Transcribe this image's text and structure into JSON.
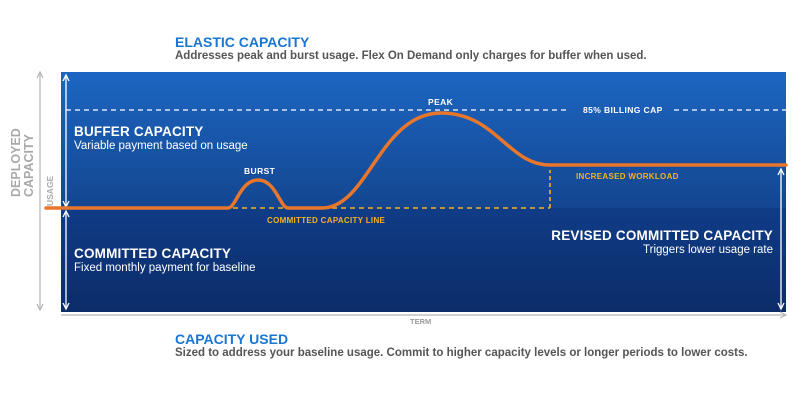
{
  "header": {
    "title": "ELASTIC CAPACITY",
    "subtitle": "Addresses peak and burst usage. Flex On Demand only charges for buffer when used."
  },
  "footer": {
    "title": "CAPACITY USED",
    "subtitle": "Sized to address your baseline usage. Commit to higher capacity levels or longer periods to lower costs."
  },
  "axes": {
    "y_outer": "DEPLOYED CAPACITY",
    "y_outer_line1": "DEPLOYED",
    "y_outer_line2": "CAPACITY",
    "y_inner": "USAGE",
    "x": "TERM"
  },
  "regions": {
    "buffer": {
      "title": "BUFFER CAPACITY",
      "subtitle": "Variable payment based on usage"
    },
    "committed": {
      "title": "COMMITTED CAPACITY",
      "subtitle": "Fixed monthly payment for baseline"
    },
    "revised": {
      "title": "REVISED COMMITTED CAPACITY",
      "subtitle": "Triggers lower usage rate"
    }
  },
  "annotations": {
    "billing_cap": "85% BILLING CAP",
    "peak": "PEAK",
    "burst": "BURST",
    "committed_line": "COMMITTED CAPACITY LINE",
    "increased_workload": "INCREASED WORKLOAD"
  },
  "colors": {
    "title_blue": "#1976d2",
    "panel_top": "#1c66c2",
    "panel_bottom": "#0d2d6a",
    "usage_line": "#e8762b",
    "committed_dash": "#f6b21e",
    "label_gray": "#a9a9a9"
  }
}
